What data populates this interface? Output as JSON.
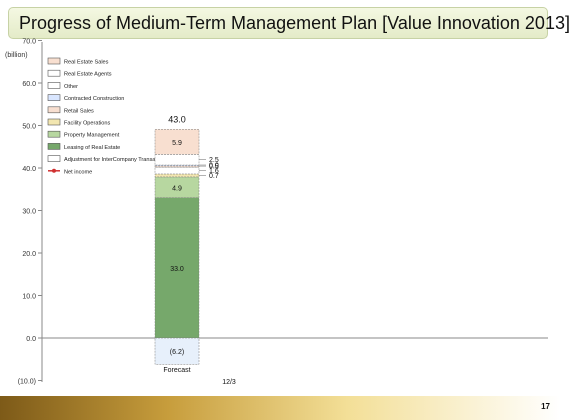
{
  "header": {
    "title": "Progress of Medium-Term Management Plan [Value Innovation 2013]"
  },
  "page_number": "17",
  "chart_data": {
    "type": "bar",
    "ylabel": "(billion)",
    "ylim": [
      -10,
      70
    ],
    "yticks": [
      "(10.0)",
      "0.0",
      "10.0",
      "20.0",
      "30.0",
      "40.0",
      "50.0",
      "60.0",
      "70.0"
    ],
    "legend": [
      {
        "label": "Real Estate Sales",
        "color": "#f8dfd0",
        "kind": "box"
      },
      {
        "label": "Real Estate Agents",
        "color": "#ffffff",
        "kind": "box"
      },
      {
        "label": "Other",
        "color": "#ffffff",
        "kind": "box"
      },
      {
        "label": "Contracted Construction",
        "color": "#d9e6ff",
        "kind": "box"
      },
      {
        "label": "Retail Sales",
        "color": "#f8dfd0",
        "kind": "box"
      },
      {
        "label": "Facility Operations",
        "color": "#f2e6b0",
        "kind": "box"
      },
      {
        "label": "Property Management",
        "color": "#b7d7a0",
        "kind": "box"
      },
      {
        "label": "Leasing of Real Estate",
        "color": "#76a86b",
        "kind": "box"
      },
      {
        "label": "Adjustment for InterCompany Transactions",
        "color": "#ffffff",
        "kind": "box"
      },
      {
        "label": "Net income",
        "color": "#d03030",
        "kind": "line"
      }
    ],
    "bar": {
      "label": "Forecast",
      "period": "12/3",
      "total": "43.0",
      "segments": [
        {
          "value": 33.0,
          "label": "33.0",
          "color": "#76a86b"
        },
        {
          "value": 4.9,
          "label": "4.9",
          "color": "#b7d7a0"
        },
        {
          "value": 0.7,
          "label": "0.7",
          "color": "#f2e6b0"
        },
        {
          "value": 1.6,
          "label": "1.6",
          "color": "#ffffff"
        },
        {
          "value": 0.5,
          "label": "0.5",
          "color": "#f8dfd0"
        },
        {
          "value": 0.0,
          "label": "0.0",
          "color": "#d9e6ff"
        },
        {
          "value": 2.5,
          "label": "2.5",
          "color": "#ffffff"
        },
        {
          "value": 5.9,
          "label": "5.9",
          "color": "#f8dfd0"
        }
      ],
      "adjustment": {
        "value": -6.2,
        "label": "(6.2)"
      }
    }
  }
}
